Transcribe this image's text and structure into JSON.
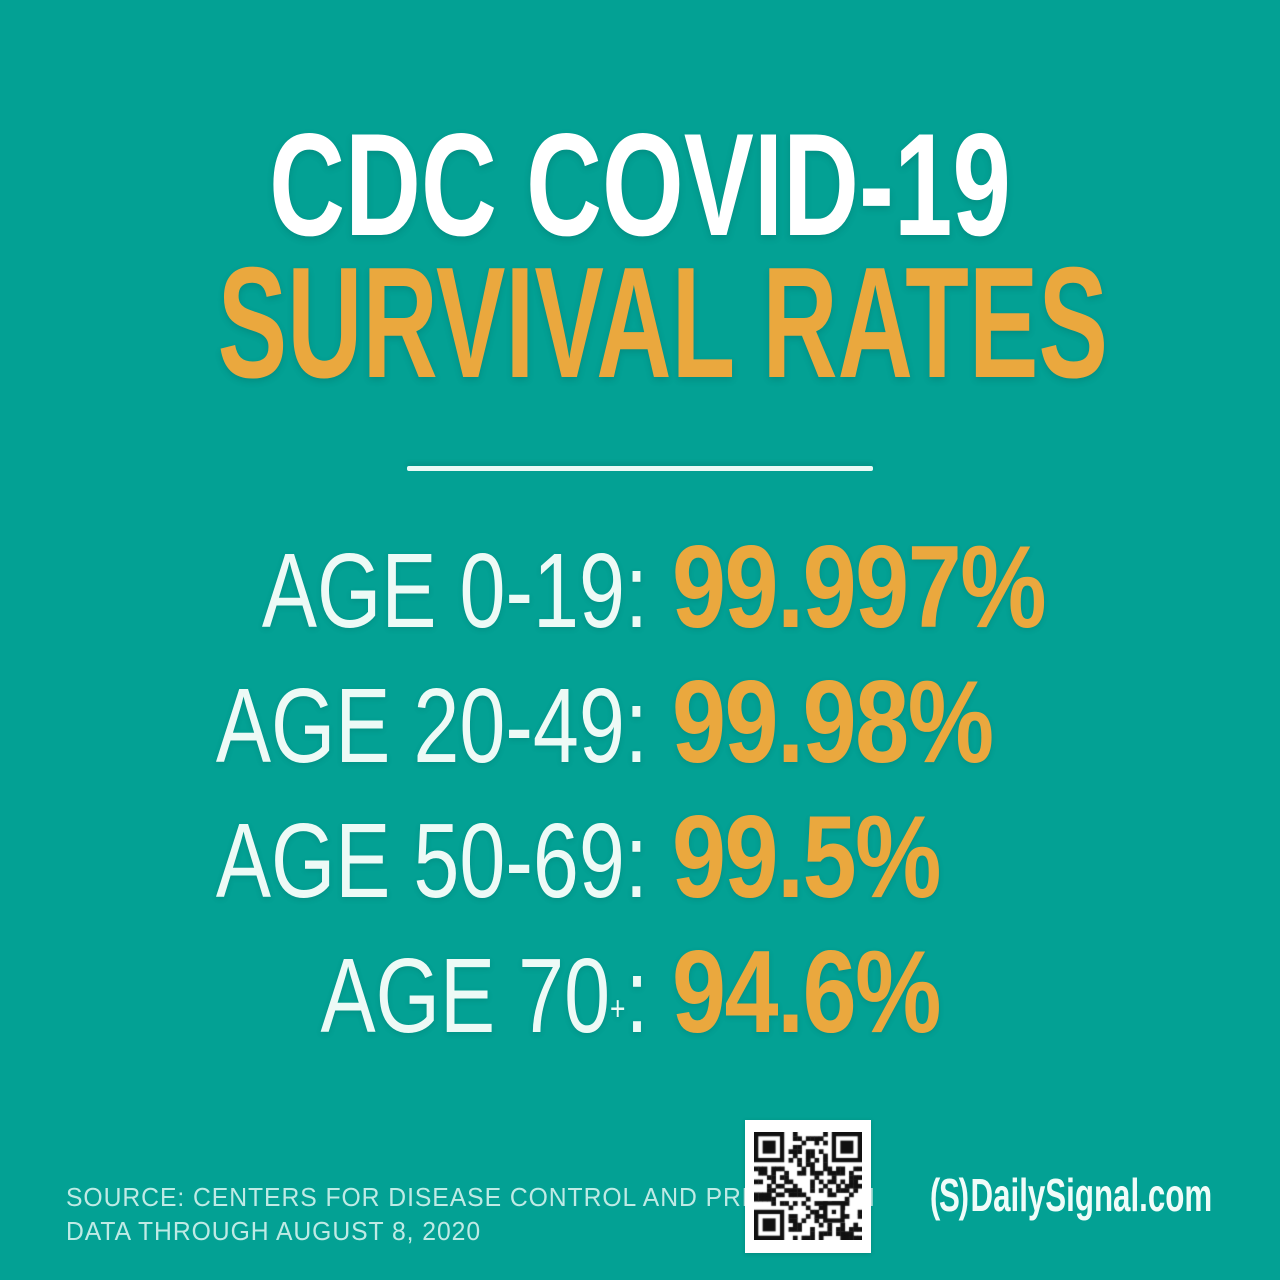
{
  "colors": {
    "background": "#03A194",
    "accent_orange": "#EAA83E",
    "text_white": "#FFFFFF",
    "muted_mint": "#E9FAF6",
    "qr_dark": "#111111"
  },
  "title": {
    "line1": "CDC COVID-19",
    "line2": "SURVIVAL RATES"
  },
  "rows": [
    {
      "label": "AGE 0-19",
      "plus": "",
      "colon": ":",
      "value": "99.997%"
    },
    {
      "label": "AGE 20-49",
      "plus": "",
      "colon": ":",
      "value": "99.98%"
    },
    {
      "label": "AGE 50-69",
      "plus": "",
      "colon": ":",
      "value": "99.5%"
    },
    {
      "label": "AGE 70",
      "plus": "+",
      "colon": ":",
      "value": "94.6%"
    }
  ],
  "source": {
    "line1": "SOURCE: CENTERS FOR DISEASE CONTROL AND PREVENTION",
    "line2": "DATA THROUGH AUGUST 8, 2020"
  },
  "footer_logo": {
    "mark": "(S)",
    "text": "DailySignal.com"
  },
  "chart_data": {
    "type": "table",
    "title": "CDC COVID-19 Survival Rates",
    "categories": [
      "AGE 0-19",
      "AGE 20-49",
      "AGE 50-69",
      "AGE 70+"
    ],
    "values": [
      99.997,
      99.98,
      99.5,
      94.6
    ],
    "unit": "%",
    "source": "Centers for Disease Control and Prevention, data through August 8, 2020"
  }
}
